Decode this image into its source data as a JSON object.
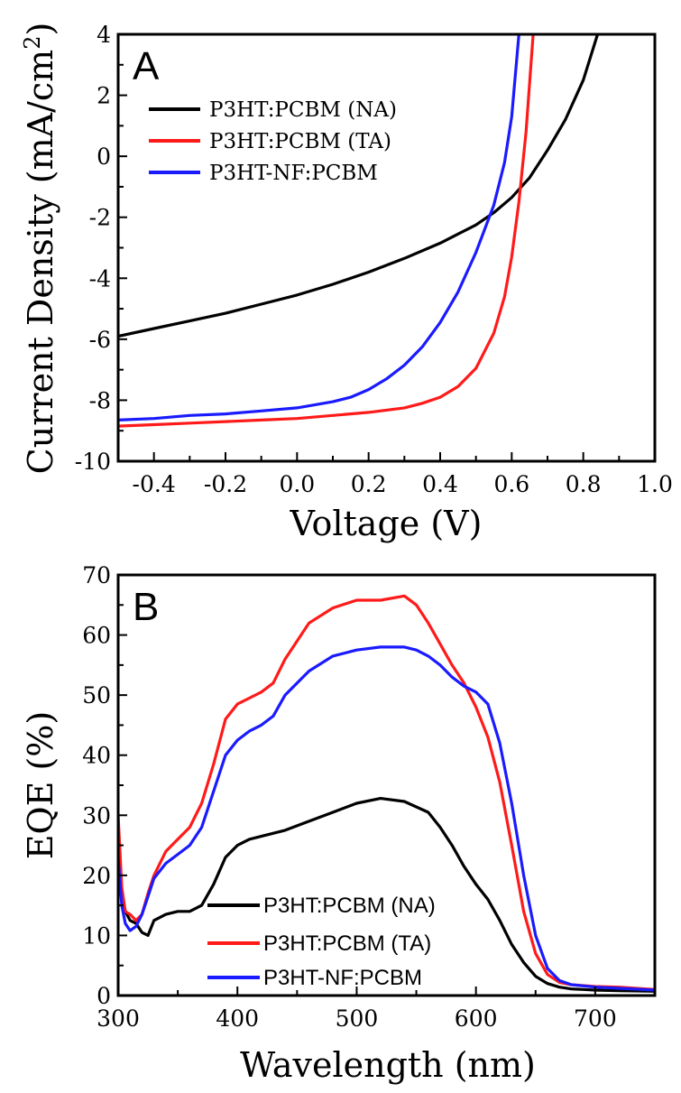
{
  "chart_data": [
    {
      "panel_label": "A",
      "type": "line",
      "xlabel": "Voltage (V)",
      "ylabel": "Current Density (mA/cm",
      "ylabel_sup": "2",
      "ylabel_close": ")",
      "xlim": [
        -0.5,
        1.0
      ],
      "ylim": [
        -10,
        4
      ],
      "xticks": [
        -0.4,
        -0.2,
        0.0,
        0.2,
        0.4,
        0.6,
        0.8,
        1.0
      ],
      "xtick_labels": [
        "-0.4",
        "-0.2",
        "0.0",
        "0.2",
        "0.4",
        "0.6",
        "0.8",
        "1.0"
      ],
      "yticks": [
        -10,
        -8,
        -6,
        -4,
        -2,
        0,
        2,
        4
      ],
      "ytick_labels": [
        "-10",
        "-8",
        "-6",
        "-4",
        "-2",
        "0",
        "2",
        "4"
      ],
      "legend_position": "top-left",
      "series": [
        {
          "name": "P3HT:PCBM (NA)",
          "color": "#000000",
          "x": [
            -0.5,
            -0.4,
            -0.3,
            -0.2,
            -0.1,
            0.0,
            0.1,
            0.2,
            0.3,
            0.4,
            0.5,
            0.55,
            0.6,
            0.65,
            0.7,
            0.75,
            0.8,
            0.84
          ],
          "y": [
            -5.9,
            -5.65,
            -5.4,
            -5.15,
            -4.85,
            -4.55,
            -4.2,
            -3.8,
            -3.35,
            -2.85,
            -2.25,
            -1.85,
            -1.35,
            -0.7,
            0.2,
            1.2,
            2.5,
            4.0
          ]
        },
        {
          "name": "P3HT:PCBM (TA)",
          "color": "#ff1a1a",
          "x": [
            -0.5,
            -0.4,
            -0.3,
            -0.2,
            -0.1,
            0.0,
            0.1,
            0.2,
            0.3,
            0.35,
            0.4,
            0.45,
            0.5,
            0.55,
            0.58,
            0.6,
            0.62,
            0.64,
            0.66
          ],
          "y": [
            -8.85,
            -8.8,
            -8.75,
            -8.7,
            -8.65,
            -8.6,
            -8.5,
            -8.4,
            -8.25,
            -8.1,
            -7.9,
            -7.55,
            -6.95,
            -5.8,
            -4.6,
            -3.3,
            -1.5,
            0.8,
            4.0
          ]
        },
        {
          "name": "P3HT-NF:PCBM",
          "color": "#1a1aff",
          "x": [
            -0.5,
            -0.4,
            -0.3,
            -0.2,
            -0.1,
            0.0,
            0.1,
            0.15,
            0.2,
            0.25,
            0.3,
            0.35,
            0.4,
            0.45,
            0.5,
            0.55,
            0.58,
            0.6,
            0.62
          ],
          "y": [
            -8.65,
            -8.6,
            -8.5,
            -8.45,
            -8.35,
            -8.25,
            -8.05,
            -7.9,
            -7.65,
            -7.3,
            -6.85,
            -6.25,
            -5.45,
            -4.45,
            -3.15,
            -1.6,
            -0.2,
            1.3,
            4.0
          ]
        }
      ]
    },
    {
      "panel_label": "B",
      "type": "line",
      "xlabel": "Wavelength (nm)",
      "ylabel": "EQE (%)",
      "xlim": [
        300,
        750
      ],
      "ylim": [
        0,
        70
      ],
      "xticks": [
        300,
        400,
        500,
        600,
        700
      ],
      "xtick_labels": [
        "300",
        "400",
        "500",
        "600",
        "700"
      ],
      "yticks": [
        0,
        10,
        20,
        30,
        40,
        50,
        60,
        70
      ],
      "ytick_labels": [
        "0",
        "10",
        "20",
        "30",
        "40",
        "50",
        "60",
        "70"
      ],
      "legend_position": "bottom-center",
      "series": [
        {
          "name": "P3HT:PCBM (NA)",
          "color": "#000000",
          "x": [
            300,
            303,
            306,
            310,
            315,
            320,
            325,
            330,
            340,
            350,
            360,
            370,
            380,
            390,
            400,
            410,
            420,
            440,
            460,
            480,
            500,
            520,
            540,
            560,
            570,
            580,
            590,
            600,
            610,
            620,
            630,
            640,
            650,
            660,
            670,
            680,
            690,
            700,
            720,
            750
          ],
          "y": [
            23,
            17,
            14,
            12.5,
            12,
            10.5,
            10,
            12.5,
            13.5,
            14,
            14,
            15,
            18.5,
            23,
            25,
            26,
            26.5,
            27.5,
            29,
            30.5,
            32,
            32.8,
            32.3,
            30.5,
            28,
            25,
            21.5,
            18.5,
            16,
            12.5,
            8.5,
            5.5,
            3.2,
            2,
            1.4,
            1.1,
            1,
            0.9,
            0.8,
            0.7
          ]
        },
        {
          "name": "P3HT:PCBM (TA)",
          "color": "#ff1a1a",
          "x": [
            300,
            303,
            306,
            310,
            315,
            320,
            325,
            330,
            340,
            350,
            360,
            370,
            380,
            390,
            400,
            410,
            420,
            430,
            440,
            460,
            480,
            500,
            520,
            540,
            550,
            560,
            570,
            580,
            590,
            600,
            610,
            620,
            630,
            640,
            650,
            660,
            670,
            680,
            700,
            720,
            750
          ],
          "y": [
            30,
            18,
            14,
            13.5,
            12.5,
            13.5,
            17,
            20,
            24,
            26,
            28,
            32,
            38.5,
            46,
            48.5,
            49.5,
            50.5,
            52,
            56,
            62,
            64.5,
            65.8,
            65.8,
            66.5,
            65,
            62,
            58.5,
            55,
            52,
            48,
            43,
            35.5,
            25,
            14,
            7,
            3.5,
            2.2,
            1.8,
            1.5,
            1.4,
            1.0
          ]
        },
        {
          "name": "P3HT-NF:PCBM",
          "color": "#1a1aff",
          "x": [
            300,
            303,
            306,
            310,
            315,
            320,
            325,
            330,
            340,
            350,
            360,
            370,
            380,
            390,
            400,
            410,
            420,
            430,
            440,
            460,
            480,
            500,
            520,
            540,
            550,
            560,
            570,
            580,
            590,
            600,
            610,
            620,
            630,
            640,
            650,
            660,
            670,
            680,
            700,
            720,
            750
          ],
          "y": [
            23,
            15,
            12,
            10.8,
            11.5,
            13.5,
            16.5,
            19.5,
            22,
            23.5,
            25,
            28,
            34,
            40,
            42.5,
            44,
            45,
            46.5,
            50,
            54,
            56.5,
            57.5,
            58,
            58,
            57.5,
            56.5,
            55,
            53,
            51.5,
            50.5,
            48.5,
            42,
            32,
            20,
            10,
            4.5,
            2.5,
            1.8,
            1.4,
            1.2,
            0.9
          ]
        }
      ]
    }
  ]
}
